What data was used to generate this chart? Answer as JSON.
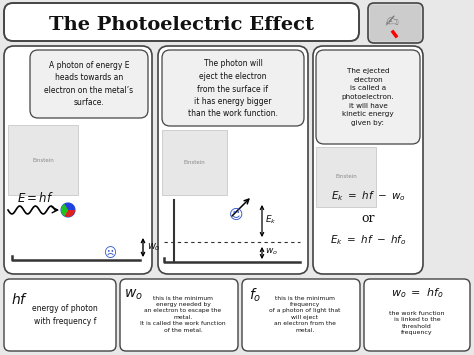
{
  "title": "The Photoelectric Effect",
  "bg_color": "#e8e8e8",
  "box_color": "#ffffff",
  "border_color": "#444444",
  "text_color": "#111111",
  "panel1_bubble": "A photon of energy E\nheads towards an\nelectron on the metal’s\nsurface.",
  "panel2_bubble": "The photon will\neject the electron\nfrom the surface if\nit has energy bigger\nthan the work function.",
  "panel3_bubble": "The ejected\nelectron\nis called a\nphotoelectron.\nit will have\nkinetic energy\ngiven by:",
  "panel1_formula": "$E  =  hf$",
  "panel3_or": "or",
  "footer1_text": "energy of photon\nwith frequency f",
  "footer2_text": "this is the minimum\nenergy needed by\nan electron to escape the\nmetal.\nIt is called the work function\nof the metal.",
  "footer3_text": "this is the minimum\nfrequency\nof a photon of light that\nwill eject\nan electron from the\nmetal.",
  "footer4_text": "the work function\nis linked to the\nthreshold\nfrequency"
}
